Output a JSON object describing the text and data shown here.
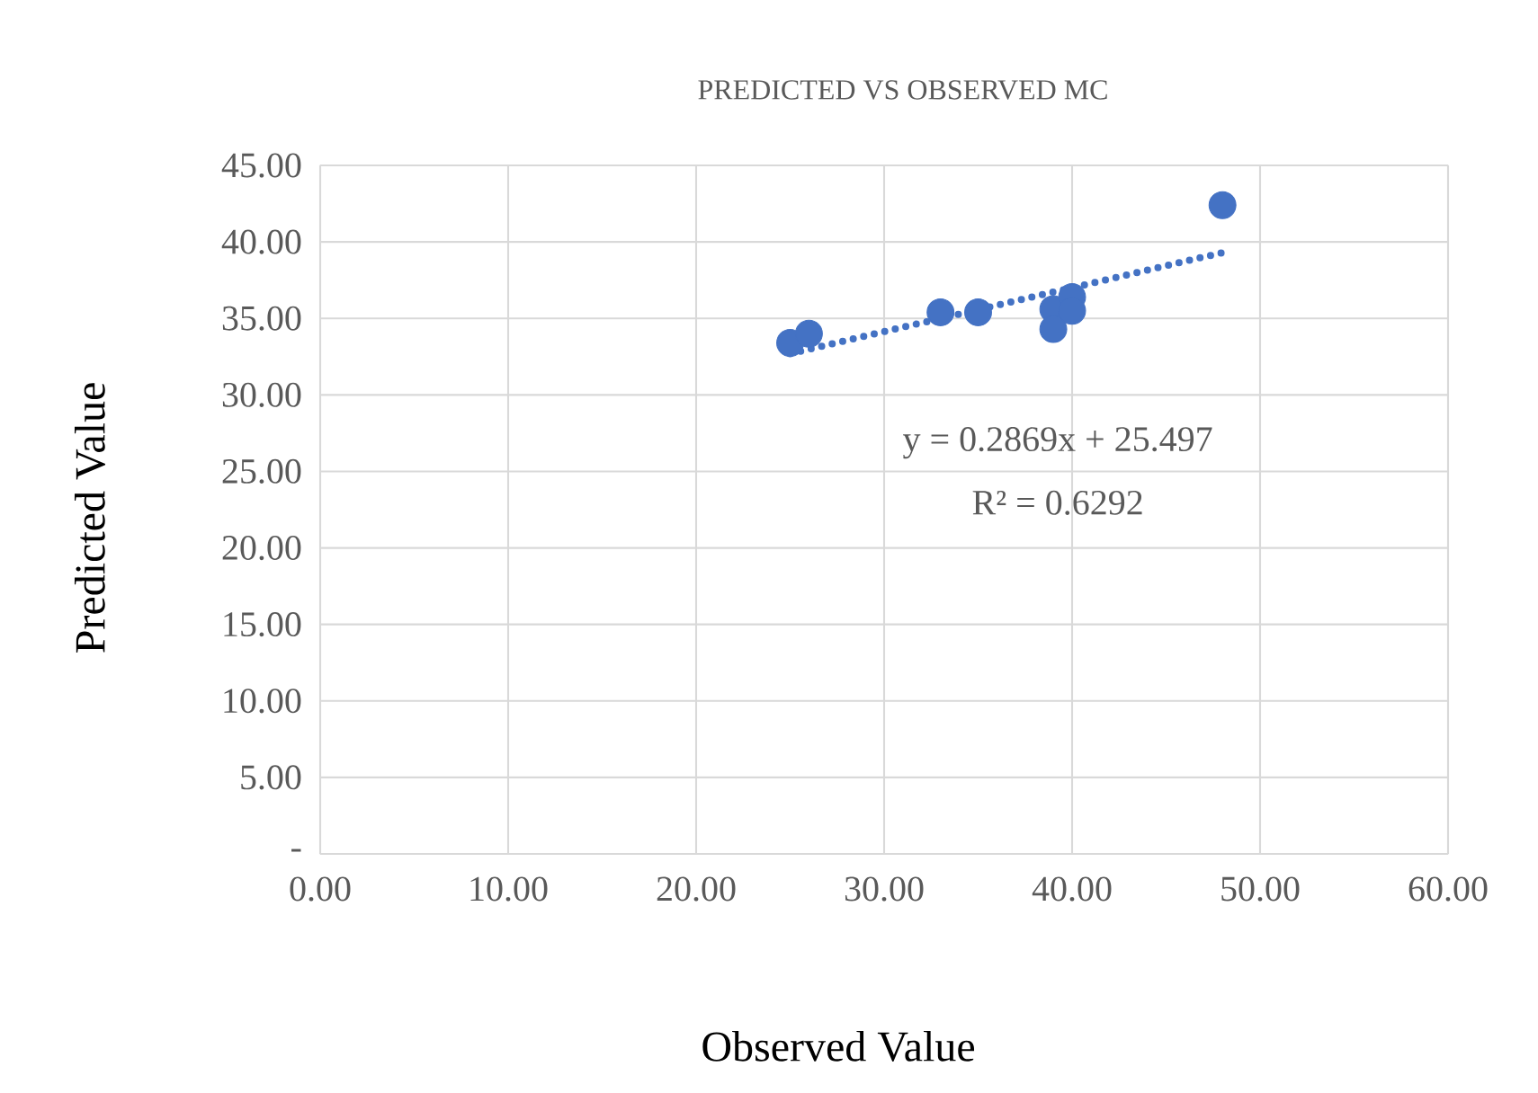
{
  "chart_data": {
    "type": "scatter",
    "title": "PREDICTED VS OBSERVED MC",
    "xlabel": "Observed Value",
    "ylabel": "Predicted Value",
    "series": [
      {
        "color": "#4472c4",
        "marker": "circle",
        "x": [
          25,
          26,
          33,
          35,
          39,
          39,
          40,
          40,
          48
        ],
        "values": [
          33.4,
          34.0,
          35.4,
          35.4,
          35.6,
          34.3,
          36.4,
          35.5,
          42.4
        ]
      },
      {
        "type": "line",
        "color": "#4472c4",
        "line_style": "dotted",
        "marker": "none",
        "x": [
          25,
          48
        ],
        "values": [
          32.7,
          39.3
        ]
      }
    ],
    "annotations": [
      "y = 0.2869x + 25.497",
      "R² = 0.6292"
    ],
    "xlim": [
      0,
      60
    ],
    "ylim": [
      0,
      45
    ],
    "xticks": [
      {
        "value": 0,
        "label": "0.00"
      },
      {
        "value": 10,
        "label": "10.00"
      },
      {
        "value": 20,
        "label": "20.00"
      },
      {
        "value": 30,
        "label": "30.00"
      },
      {
        "value": 40,
        "label": "40.00"
      },
      {
        "value": 50,
        "label": "50.00"
      },
      {
        "value": 60,
        "label": "60.00"
      }
    ],
    "yticks": [
      {
        "value": 0,
        "label": "-"
      },
      {
        "value": 5,
        "label": "5.00"
      },
      {
        "value": 10,
        "label": "10.00"
      },
      {
        "value": 15,
        "label": "15.00"
      },
      {
        "value": 20,
        "label": "20.00"
      },
      {
        "value": 25,
        "label": "25.00"
      },
      {
        "value": 30,
        "label": "30.00"
      },
      {
        "value": 35,
        "label": "35.00"
      },
      {
        "value": 40,
        "label": "40.00"
      },
      {
        "value": 45,
        "label": "45.00"
      }
    ],
    "grid": true
  }
}
